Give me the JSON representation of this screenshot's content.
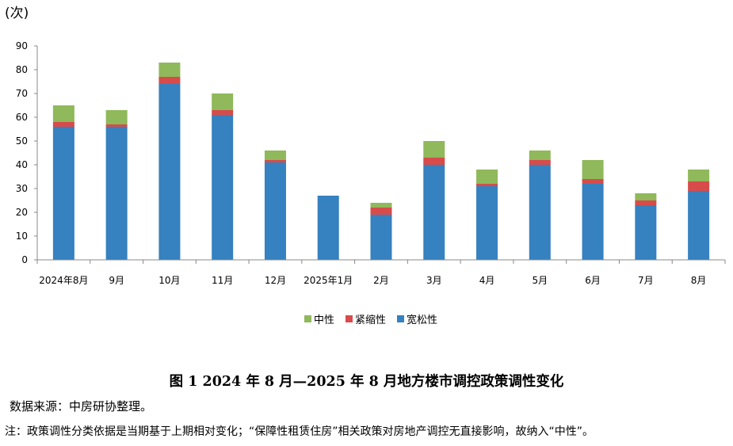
{
  "unit_label": "(次)",
  "caption": "图 1 2024 年 8 月—2025 年 8 月地方楼市调控政策调性变化",
  "source": "数据来源：中房研协整理。",
  "note": "注：政策调性分类依据是当期基于上期相对变化；“保障性租赁住房”相关政策对房地产调控无直接影响，故纳入“中性”。",
  "colors": {
    "neutral": "#8fb95a",
    "tight": "#d84b4b",
    "loose": "#3681bf",
    "axis": "#888888"
  },
  "chart_data": {
    "type": "bar",
    "stacked": true,
    "categories": [
      "2024年8月",
      "9月",
      "10月",
      "11月",
      "12月",
      "2025年1月",
      "2月",
      "3月",
      "4月",
      "5月",
      "6月",
      "7月",
      "8月"
    ],
    "series": [
      {
        "name": "宽松性",
        "values": [
          56,
          56,
          74,
          61,
          41,
          27,
          19,
          40,
          31,
          40,
          32,
          23,
          29
        ]
      },
      {
        "name": "紧缩性",
        "values": [
          2,
          1,
          3,
          2,
          1,
          0,
          3,
          3,
          1,
          2,
          2,
          2,
          4
        ]
      },
      {
        "name": "中性",
        "values": [
          7,
          6,
          6,
          7,
          4,
          0,
          2,
          7,
          6,
          4,
          8,
          3,
          5
        ]
      }
    ],
    "legend": [
      "中性",
      "紧缩性",
      "宽松性"
    ],
    "yticks": [
      0,
      10,
      20,
      30,
      40,
      50,
      60,
      70,
      80,
      90
    ],
    "ylim": [
      0,
      90
    ],
    "ylabel": "(次)",
    "xlabel": "",
    "legend_position": "bottom-center"
  }
}
